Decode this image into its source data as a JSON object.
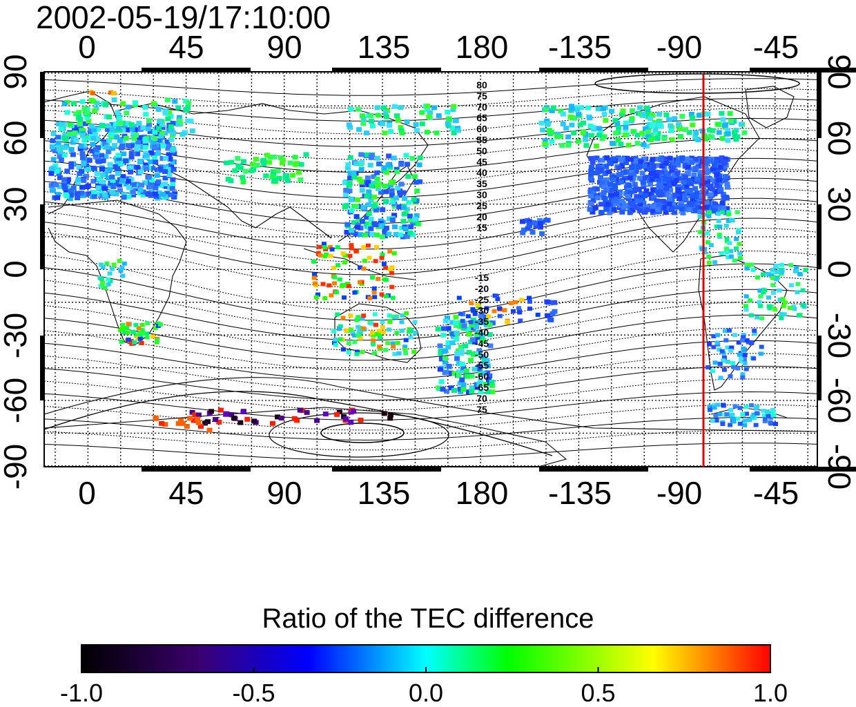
{
  "timestamp": "2002-05-19/17:10:00",
  "map": {
    "lon_ticks_top": [
      "0",
      "45",
      "90",
      "135",
      "180",
      "-135",
      "-90",
      "-45"
    ],
    "lon_ticks_bottom": [
      "0",
      "45",
      "90",
      "135",
      "180",
      "-135",
      "-90",
      "-45"
    ],
    "lat_ticks_left": [
      "90",
      "60",
      "30",
      "0",
      "-30",
      "-60",
      "-90"
    ],
    "lat_ticks_right": [
      "90",
      "60",
      "30",
      "0",
      "-30",
      "-60",
      "-90"
    ],
    "contour_labels_north": [
      "80",
      "75",
      "70",
      "65",
      "60",
      "55",
      "50",
      "45",
      "40",
      "35",
      "30",
      "25",
      "20",
      "15"
    ],
    "contour_labels_south": [
      "-15",
      "-20",
      "-25",
      "-30",
      "-35",
      "-40",
      "-45",
      "-50",
      "-55",
      "-60",
      "-65",
      "70",
      "75"
    ],
    "red_line_longitude": -77,
    "colors": {
      "red_line": "#e00000",
      "grid": "#000000"
    }
  },
  "colorbar": {
    "title": "Ratio of the TEC difference",
    "ticks": [
      "-1.0",
      "-0.5",
      "0.0",
      "0.5",
      "1.0"
    ],
    "colors": [
      "#000000",
      "#3a006e",
      "#0000ff",
      "#00ffff",
      "#00ff00",
      "#ffff00",
      "#ff0000"
    ]
  }
}
